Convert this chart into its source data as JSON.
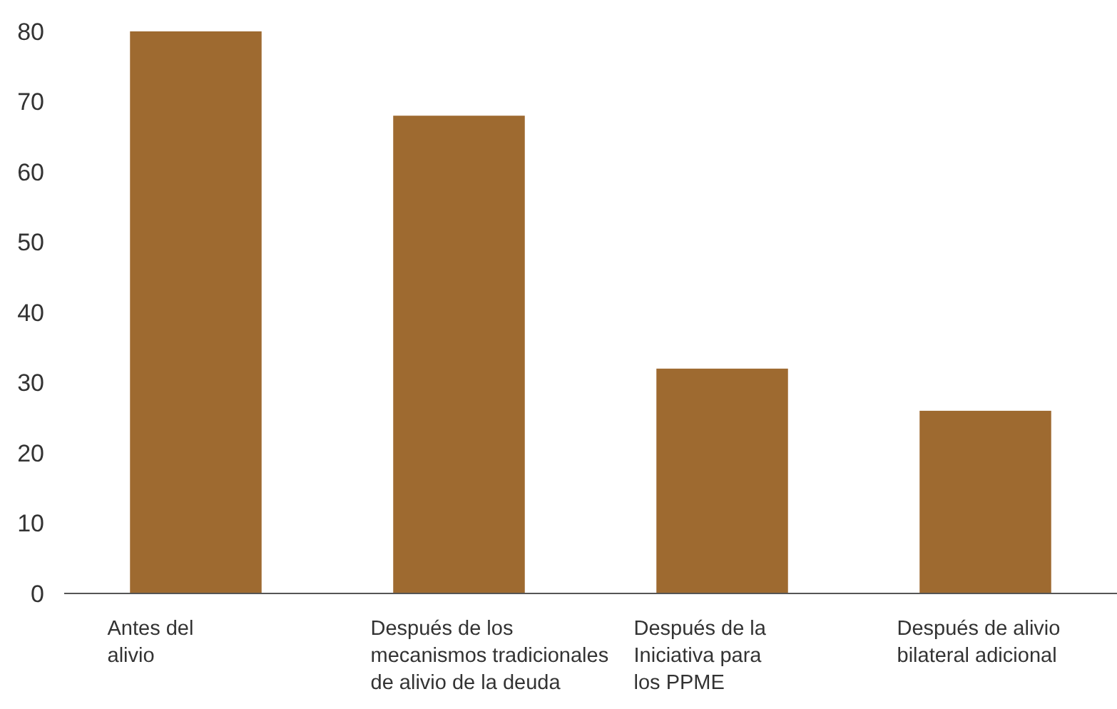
{
  "chart_data": {
    "type": "bar",
    "categories": [
      "Antes del\nalivio",
      "Después de los\nmecanismos tradicionales\nde alivio de la deuda",
      "Después de la\nIniciativa para\nlos PPME",
      "Después de alivio\nbilateral adicional"
    ],
    "values": [
      80,
      68,
      32,
      26
    ],
    "color": "#9e6a30",
    "ylim": [
      0,
      80
    ],
    "yticks": [
      0,
      10,
      20,
      30,
      40,
      50,
      60,
      70,
      80
    ],
    "grid": false
  }
}
